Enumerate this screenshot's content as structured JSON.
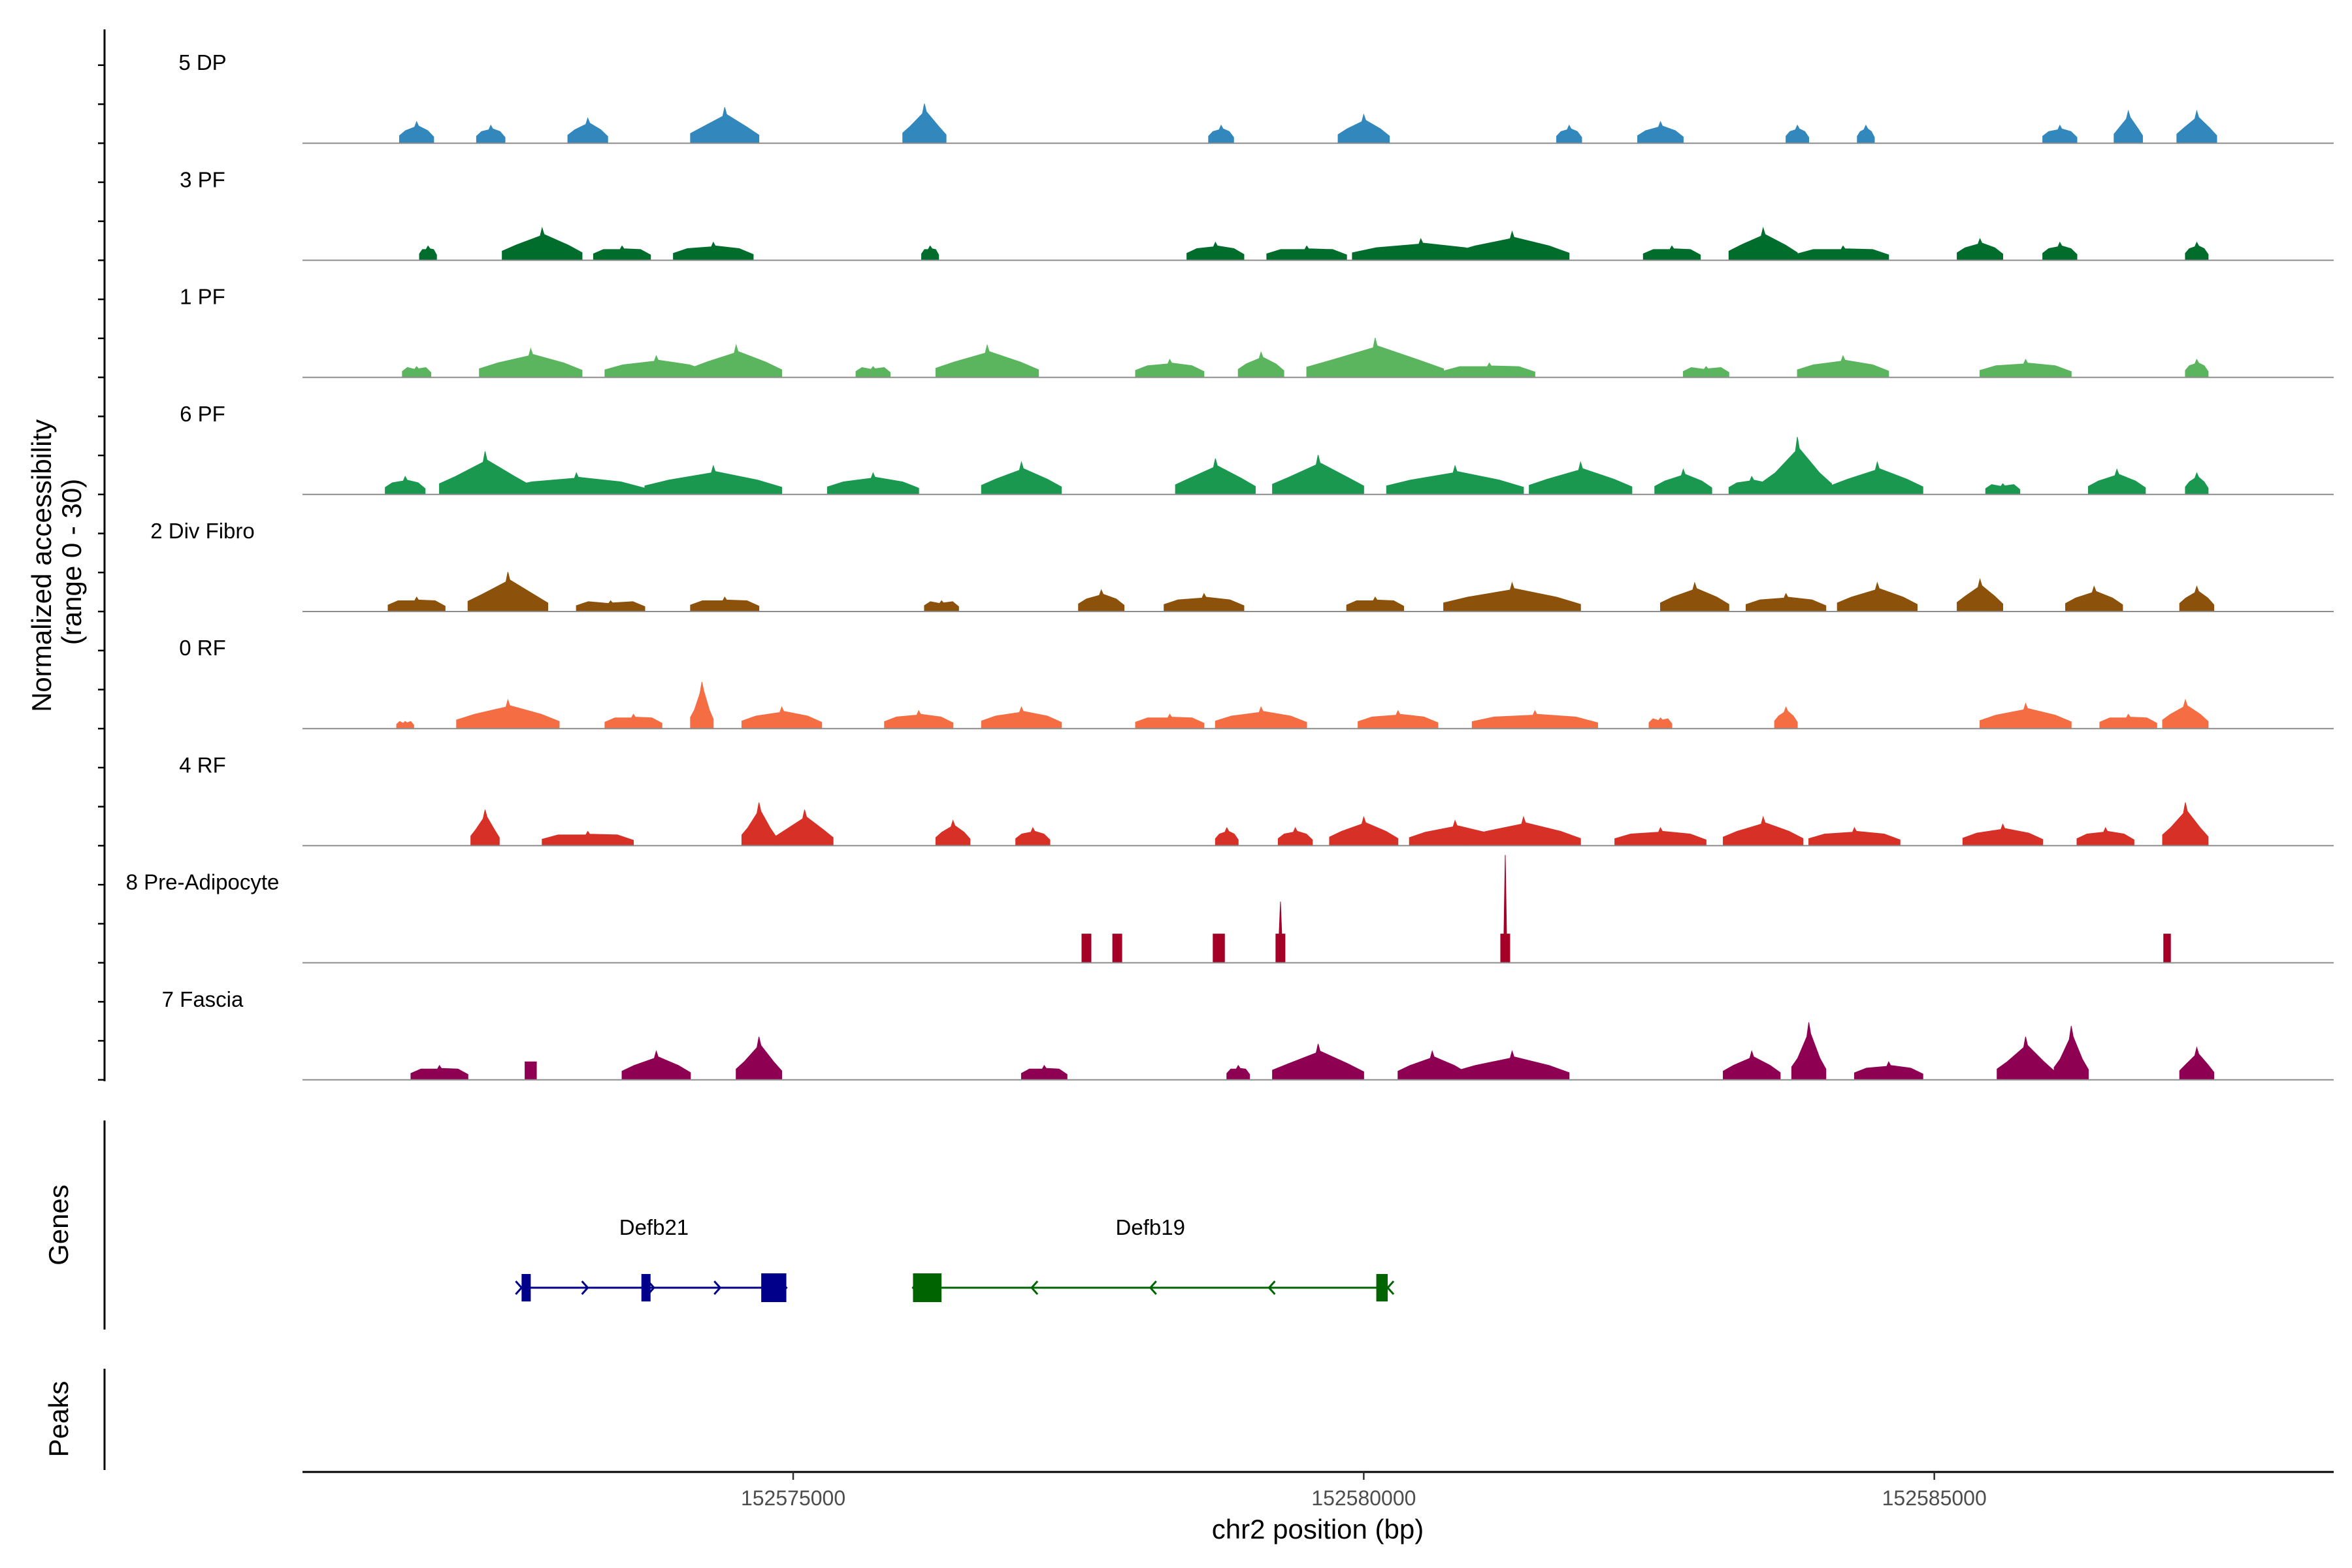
{
  "chart_data": {
    "type": "area",
    "title": "",
    "coverage": {
      "ylabel_line1": "Normalized accessibility",
      "ylabel_line2": "(range 0 - 30)",
      "ylim": [
        0,
        30
      ]
    },
    "genes_label": "Genes",
    "peaks_label": "Peaks",
    "xlabel": "chr2 position (bp)",
    "xlim": [
      152570700,
      152588500
    ],
    "x_ticks": [
      152575000,
      152580000,
      152585000
    ],
    "x_tick_labels": [
      "152575000",
      "152580000",
      "152585000"
    ],
    "tracks": [
      {
        "name": "5 DP",
        "color": "#3288bd",
        "peaks": [
          [
            152571700,
            6,
            300
          ],
          [
            152572350,
            5,
            250
          ],
          [
            152573200,
            7,
            350
          ],
          [
            152574400,
            10,
            600
          ],
          [
            152576150,
            11,
            380
          ],
          [
            152578750,
            5,
            220
          ],
          [
            152580000,
            8,
            450
          ],
          [
            152581800,
            5,
            220
          ],
          [
            152582600,
            6,
            400
          ],
          [
            152583800,
            5,
            200
          ],
          [
            152584400,
            5,
            150
          ],
          [
            152586100,
            5,
            300
          ],
          [
            152586700,
            9,
            250
          ],
          [
            152587300,
            9,
            350
          ]
        ]
      },
      {
        "name": "3 PF",
        "color": "#006d2c",
        "peaks": [
          [
            152571800,
            4,
            150
          ],
          [
            152572800,
            9,
            700
          ],
          [
            152573500,
            4,
            500
          ],
          [
            152574300,
            5,
            700
          ],
          [
            152576200,
            4,
            150
          ],
          [
            152578700,
            5,
            500
          ],
          [
            152579500,
            4,
            700
          ],
          [
            152580500,
            6,
            1200
          ],
          [
            152581300,
            8,
            1000
          ],
          [
            152582700,
            4,
            500
          ],
          [
            152583500,
            9,
            600
          ],
          [
            152584200,
            4,
            800
          ],
          [
            152585400,
            6,
            400
          ],
          [
            152586100,
            5,
            300
          ],
          [
            152587300,
            5,
            200
          ]
        ]
      },
      {
        "name": "1 PF",
        "color": "#5ab55e",
        "peaks": [
          [
            152571700,
            3,
            250
          ],
          [
            152572700,
            8,
            900
          ],
          [
            152573800,
            6,
            900
          ],
          [
            152574500,
            9,
            800
          ],
          [
            152575700,
            3,
            300
          ],
          [
            152576700,
            9,
            900
          ],
          [
            152578300,
            5,
            600
          ],
          [
            152579100,
            7,
            400
          ],
          [
            152580100,
            11,
            1200
          ],
          [
            152581100,
            4,
            800
          ],
          [
            152583000,
            3,
            400
          ],
          [
            152584200,
            6,
            800
          ],
          [
            152585800,
            5,
            800
          ],
          [
            152587300,
            5,
            200
          ]
        ]
      },
      {
        "name": "6 PF",
        "color": "#1a9850",
        "peaks": [
          [
            152571600,
            5,
            350
          ],
          [
            152572300,
            12,
            800
          ],
          [
            152573100,
            6,
            1200
          ],
          [
            152574300,
            8,
            1200
          ],
          [
            152575700,
            6,
            800
          ],
          [
            152577000,
            9,
            700
          ],
          [
            152578700,
            10,
            700
          ],
          [
            152579600,
            11,
            800
          ],
          [
            152580800,
            8,
            1200
          ],
          [
            152581900,
            9,
            900
          ],
          [
            152582800,
            7,
            500
          ],
          [
            152583400,
            5,
            400
          ],
          [
            152583800,
            16,
            600
          ],
          [
            152584500,
            9,
            800
          ],
          [
            152585600,
            3,
            300
          ],
          [
            152586600,
            7,
            500
          ],
          [
            152587300,
            6,
            200
          ]
        ]
      },
      {
        "name": "2 Div Fibro",
        "color": "#8c510a",
        "peaks": [
          [
            152571700,
            4,
            500
          ],
          [
            152572500,
            11,
            700
          ],
          [
            152573400,
            3,
            600
          ],
          [
            152574400,
            4,
            600
          ],
          [
            152576300,
            3,
            300
          ],
          [
            152577700,
            6,
            400
          ],
          [
            152578600,
            5,
            700
          ],
          [
            152580100,
            4,
            500
          ],
          [
            152581300,
            8,
            1200
          ],
          [
            152582900,
            8,
            600
          ],
          [
            152583700,
            5,
            700
          ],
          [
            152584500,
            8,
            700
          ],
          [
            152585400,
            9,
            400
          ],
          [
            152586400,
            7,
            500
          ],
          [
            152587300,
            7,
            300
          ]
        ]
      },
      {
        "name": "0 RF",
        "color": "#f46d43",
        "peaks": [
          [
            152571600,
            2,
            150
          ],
          [
            152572500,
            8,
            900
          ],
          [
            152573600,
            4,
            500
          ],
          [
            152574200,
            13,
            200
          ],
          [
            152574900,
            6,
            700
          ],
          [
            152576100,
            5,
            600
          ],
          [
            152577000,
            6,
            700
          ],
          [
            152578300,
            4,
            600
          ],
          [
            152579100,
            6,
            800
          ],
          [
            152580300,
            5,
            700
          ],
          [
            152581500,
            5,
            1100
          ],
          [
            152582600,
            3,
            200
          ],
          [
            152583700,
            6,
            200
          ],
          [
            152585800,
            7,
            800
          ],
          [
            152586700,
            4,
            500
          ],
          [
            152587200,
            8,
            400
          ]
        ]
      },
      {
        "name": "4 RF",
        "color": "#d73027",
        "peaks": [
          [
            152572300,
            10,
            250
          ],
          [
            152573200,
            4,
            800
          ],
          [
            152574700,
            12,
            300
          ],
          [
            152575100,
            10,
            500
          ],
          [
            152576400,
            7,
            300
          ],
          [
            152577100,
            5,
            300
          ],
          [
            152578800,
            5,
            200
          ],
          [
            152579400,
            5,
            300
          ],
          [
            152580000,
            8,
            600
          ],
          [
            152580800,
            7,
            800
          ],
          [
            152581400,
            8,
            1000
          ],
          [
            152582600,
            5,
            800
          ],
          [
            152583500,
            8,
            700
          ],
          [
            152584300,
            5,
            800
          ],
          [
            152585600,
            6,
            700
          ],
          [
            152586500,
            5,
            500
          ],
          [
            152587200,
            12,
            400
          ]
        ]
      },
      {
        "name": "8 Pre-Adipocyte",
        "color": "#a50026",
        "peaks": [
          [
            152577570,
            8,
            80
          ],
          [
            152577840,
            8,
            80
          ],
          [
            152578730,
            8,
            100
          ],
          [
            152579270,
            17,
            80
          ],
          [
            152581240,
            30,
            80
          ],
          [
            152587040,
            8,
            60
          ]
        ]
      },
      {
        "name": "7 Fascia",
        "color": "#8e0152",
        "peaks": [
          [
            152571900,
            4,
            500
          ],
          [
            152572700,
            5,
            100
          ],
          [
            152573800,
            8,
            600
          ],
          [
            152574700,
            12,
            400
          ],
          [
            152577200,
            4,
            400
          ],
          [
            152578900,
            4,
            200
          ],
          [
            152579600,
            10,
            800
          ],
          [
            152580600,
            8,
            600
          ],
          [
            152581300,
            8,
            1000
          ],
          [
            152583400,
            8,
            500
          ],
          [
            152583900,
            16,
            300
          ],
          [
            152584600,
            5,
            600
          ],
          [
            152585800,
            12,
            500
          ],
          [
            152586200,
            15,
            300
          ],
          [
            152587300,
            9,
            300
          ]
        ]
      }
    ],
    "genes": [
      {
        "name": "Defb21",
        "color": "#00008b",
        "strand": "+",
        "start": 152572620,
        "end": 152574940,
        "exons": [
          [
            152572620,
            152572700
          ],
          [
            152573670,
            152573750
          ],
          [
            152574720,
            152574940
          ]
        ]
      },
      {
        "name": "Defb19",
        "color": "#006400",
        "strand": "-",
        "start": 152576050,
        "end": 152580210,
        "exons": [
          [
            152576050,
            152576300
          ],
          [
            152580110,
            152580210
          ]
        ]
      }
    ]
  }
}
